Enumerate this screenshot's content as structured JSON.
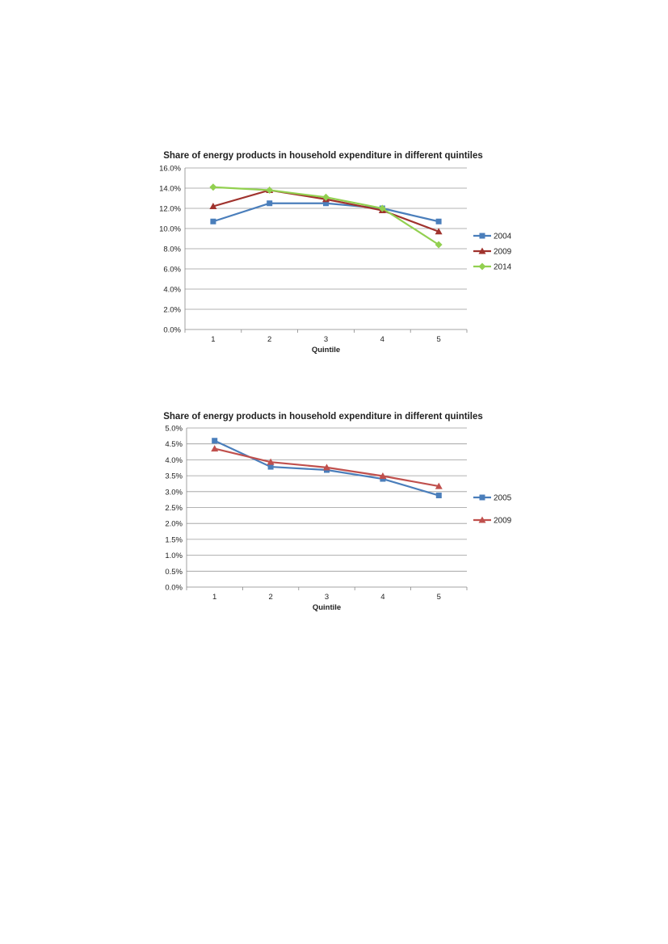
{
  "chart_data": [
    {
      "type": "line",
      "title": "Share of energy products in household expenditure in different quintiles",
      "xlabel": "Quintile",
      "ylabel": "",
      "x": [
        "1",
        "2",
        "3",
        "4",
        "5"
      ],
      "ylim": [
        0,
        16
      ],
      "y_ticks": [
        "0.0%",
        "2.0%",
        "4.0%",
        "6.0%",
        "8.0%",
        "10.0%",
        "12.0%",
        "14.0%",
        "16.0%"
      ],
      "y_unit": "%",
      "grid": true,
      "legend_position": "right",
      "series": [
        {
          "name": "2004",
          "values": [
            10.7,
            12.5,
            12.5,
            12.0,
            10.7
          ],
          "color": "#4a7ebb",
          "marker": "square"
        },
        {
          "name": "2009",
          "values": [
            12.2,
            13.8,
            12.9,
            11.8,
            9.7
          ],
          "color": "#a0332e",
          "marker": "triangle"
        },
        {
          "name": "2014",
          "values": [
            14.1,
            13.8,
            13.1,
            12.0,
            8.4
          ],
          "color": "#92d050",
          "marker": "diamond"
        }
      ]
    },
    {
      "type": "line",
      "title": "Share of energy products in household expenditure in different quintiles",
      "xlabel": "Quintile",
      "ylabel": "",
      "x": [
        "1",
        "2",
        "3",
        "4",
        "5"
      ],
      "ylim": [
        0,
        5
      ],
      "y_ticks": [
        "0.0%",
        "0.5%",
        "1.0%",
        "1.5%",
        "2.0%",
        "2.5%",
        "3.0%",
        "3.5%",
        "4.0%",
        "4.5%",
        "5.0%"
      ],
      "y_unit": "%",
      "grid": true,
      "legend_position": "right",
      "series": [
        {
          "name": "2005",
          "values": [
            4.6,
            3.78,
            3.68,
            3.4,
            2.88
          ],
          "color": "#4a7ebb",
          "marker": "square"
        },
        {
          "name": "2009",
          "values": [
            4.35,
            3.93,
            3.76,
            3.49,
            3.17
          ],
          "color": "#c0504d",
          "marker": "triangle"
        }
      ]
    }
  ]
}
